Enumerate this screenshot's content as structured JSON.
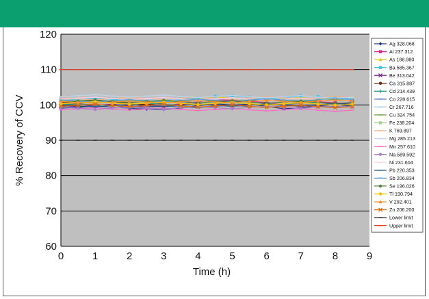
{
  "colors": {
    "header": "#0b9f70",
    "plot_background": "#bfbfbf",
    "gridline": "#000000"
  },
  "chart_data": {
    "type": "line",
    "xlabel": "Time (h)",
    "ylabel": "% Recovery of CCV",
    "xlim": [
      0,
      9
    ],
    "ylim": [
      60,
      120
    ],
    "x_ticks": [
      "0",
      "1",
      "2",
      "3",
      "4",
      "5",
      "6",
      "7",
      "8",
      "9"
    ],
    "y_ticks": [
      "60",
      "70",
      "80",
      "90",
      "100",
      "110",
      "120"
    ],
    "grid": "horizontal",
    "legend_position": "right",
    "x": [
      0,
      0.5,
      1,
      1.5,
      2,
      2.5,
      3,
      3.5,
      4,
      4.5,
      5,
      5.5,
      6,
      6.5,
      7,
      7.5,
      8,
      8.5
    ],
    "series": [
      {
        "name": "Ag 328.068",
        "color": "#1f3c88",
        "marker": "diamond",
        "values": [
          99.5,
          99.2,
          99.8,
          100.1,
          99.0,
          98.8,
          98.7,
          99.1,
          99.8,
          100.3,
          100.0,
          100.2,
          99.6,
          98.9,
          99.2,
          99.8,
          99.5,
          99.9
        ]
      },
      {
        "name": "Al 237.312",
        "color": "#e0218a",
        "marker": "square",
        "values": [
          100.2,
          100.4,
          100.9,
          101.2,
          100.6,
          100.0,
          99.8,
          100.3,
          100.9,
          101.5,
          101.3,
          101.0,
          100.7,
          100.2,
          100.5,
          100.9,
          100.6,
          100.4
        ]
      },
      {
        "name": "As 188.980",
        "color": "#e6c619",
        "marker": "triangle",
        "values": [
          101.1,
          100.8,
          101.4,
          101.0,
          100.3,
          100.7,
          101.2,
          101.6,
          101.9,
          102.3,
          101.8,
          101.5,
          101.2,
          101.7,
          102.1,
          101.6,
          101.9,
          102.2
        ]
      },
      {
        "name": "Ba 585.367",
        "color": "#3fc1e8",
        "marker": "square",
        "values": [
          101.8,
          101.5,
          101.9,
          101.6,
          101.2,
          101.0,
          101.3,
          101.7,
          102.0,
          102.4,
          102.6,
          102.2,
          101.9,
          102.1,
          102.5,
          102.3,
          102.0,
          101.7
        ]
      },
      {
        "name": "Be 313.042",
        "color": "#7b2c8f",
        "marker": "x",
        "values": [
          99.8,
          99.5,
          99.9,
          100.2,
          99.7,
          99.4,
          99.6,
          100.1,
          100.4,
          100.0,
          99.8,
          100.1,
          100.3,
          99.9,
          99.6,
          100.0,
          100.2,
          100.5
        ]
      },
      {
        "name": "Ca 315.887",
        "color": "#6b2d12",
        "marker": "circle",
        "values": [
          100.6,
          100.9,
          101.3,
          100.9,
          100.4,
          100.1,
          100.5,
          100.9,
          101.3,
          101.0,
          100.7,
          101.1,
          101.4,
          101.0,
          100.8,
          101.2,
          101.5,
          101.1
        ]
      },
      {
        "name": "Cd 214.439",
        "color": "#2a9d8f",
        "marker": "plus",
        "values": [
          100.1,
          100.3,
          100.0,
          99.8,
          100.2,
          100.5,
          100.2,
          99.9,
          100.1,
          100.4,
          100.6,
          100.3,
          100.0,
          100.2,
          100.5,
          100.7,
          100.4,
          100.1
        ]
      },
      {
        "name": "Co 228.615",
        "color": "#4472c4",
        "marker": "dash",
        "values": [
          99.0,
          99.4,
          99.7,
          99.3,
          99.1,
          99.5,
          99.8,
          99.4,
          99.2,
          99.6,
          99.9,
          99.5,
          99.3,
          99.7,
          100.0,
          99.6,
          99.4,
          99.8
        ]
      },
      {
        "name": "Cr 267.716",
        "color": "#9dc3e6",
        "marker": "dash",
        "values": [
          100.9,
          101.2,
          101.6,
          101.3,
          101.0,
          101.4,
          101.7,
          101.4,
          101.1,
          101.5,
          101.8,
          101.5,
          101.2,
          101.6,
          101.9,
          101.6,
          101.3,
          101.7
        ]
      },
      {
        "name": "Cu 324.754",
        "color": "#70ad47",
        "marker": "dash",
        "values": [
          101.3,
          101.0,
          100.7,
          101.1,
          101.4,
          101.1,
          100.8,
          101.2,
          101.5,
          101.2,
          100.9,
          101.3,
          101.6,
          101.3,
          101.0,
          101.4,
          101.7,
          101.4
        ]
      },
      {
        "name": "Fe 238.204",
        "color": "#a9d18e",
        "marker": "square",
        "values": [
          100.4,
          100.7,
          101.0,
          100.6,
          100.3,
          100.6,
          100.9,
          100.5,
          100.2,
          100.5,
          100.8,
          100.4,
          100.1,
          100.4,
          100.7,
          100.3,
          100.0,
          100.3
        ]
      },
      {
        "name": "K 769.897",
        "color": "#f4b183",
        "marker": "dash",
        "values": [
          102.0,
          101.7,
          101.4,
          101.8,
          102.1,
          101.8,
          101.5,
          101.9,
          102.2,
          101.9,
          101.6,
          102.0,
          102.3,
          102.0,
          101.7,
          102.1,
          102.4,
          102.1
        ]
      },
      {
        "name": "Mg 285.213",
        "color": "#bdd7ee",
        "marker": "dash",
        "values": [
          102.3,
          102.6,
          102.9,
          102.5,
          102.2,
          102.5,
          102.8,
          102.4,
          102.1,
          102.4,
          102.7,
          102.3,
          102.0,
          102.3,
          102.6,
          102.2,
          101.9,
          102.2
        ]
      },
      {
        "name": "Mn 257.610",
        "color": "#ff66c4",
        "marker": "dash",
        "values": [
          98.6,
          98.9,
          99.2,
          98.8,
          98.5,
          98.8,
          99.1,
          98.7,
          98.4,
          98.7,
          99.0,
          98.6,
          98.3,
          98.6,
          98.9,
          98.5,
          98.2,
          98.5
        ]
      },
      {
        "name": "Na 589.592",
        "color": "#b07cc6",
        "marker": "circle",
        "values": [
          99.3,
          99.0,
          98.7,
          99.1,
          99.4,
          99.1,
          98.8,
          99.2,
          99.5,
          99.2,
          98.9,
          99.3,
          99.6,
          99.3,
          99.0,
          99.4,
          99.7,
          99.4
        ]
      },
      {
        "name": "Ni 231.604",
        "color": "#ffd1e8",
        "marker": "dash",
        "values": [
          101.6,
          101.9,
          102.2,
          101.8,
          101.5,
          101.8,
          102.1,
          101.7,
          101.4,
          101.7,
          102.0,
          101.6,
          101.3,
          101.6,
          101.9,
          101.5,
          101.2,
          101.5
        ]
      },
      {
        "name": "Pb 220.353",
        "color": "#1f4e79",
        "marker": "dash",
        "values": [
          100.0,
          99.7,
          99.4,
          99.8,
          100.1,
          99.8,
          99.5,
          99.9,
          100.2,
          99.9,
          99.6,
          100.0,
          100.3,
          100.0,
          99.7,
          100.1,
          100.4,
          100.1
        ]
      },
      {
        "name": "Sb 206.834",
        "color": "#5b9bd5",
        "marker": "dash",
        "values": [
          101.4,
          101.1,
          100.8,
          101.2,
          101.5,
          101.2,
          100.9,
          101.3,
          101.6,
          101.3,
          101.0,
          101.4,
          101.7,
          101.4,
          101.1,
          101.5,
          101.8,
          101.5
        ]
      },
      {
        "name": "Se 196.026",
        "color": "#548235",
        "marker": "circle",
        "values": [
          100.8,
          101.1,
          101.4,
          101.0,
          100.7,
          101.0,
          101.3,
          100.9,
          100.6,
          100.9,
          101.2,
          100.8,
          100.5,
          100.8,
          101.1,
          100.7,
          100.4,
          100.7
        ]
      },
      {
        "name": "Tl 190.794",
        "color": "#ffc000",
        "marker": "circle",
        "values": [
          100.3,
          100.6,
          100.9,
          100.5,
          100.2,
          100.5,
          100.8,
          100.4,
          100.1,
          100.4,
          100.7,
          100.3,
          100.0,
          100.3,
          100.6,
          100.2,
          99.9,
          100.2
        ]
      },
      {
        "name": "V 292.401",
        "color": "#f28e2b",
        "marker": "triangle",
        "values": [
          101.0,
          100.7,
          100.4,
          100.8,
          101.1,
          100.8,
          100.5,
          100.9,
          101.2,
          100.9,
          100.6,
          101.0,
          101.3,
          101.0,
          100.7,
          101.1,
          101.4,
          101.1
        ]
      },
      {
        "name": "Zn 206.200",
        "color": "#e46c0a",
        "marker": "x",
        "values": [
          99.6,
          99.9,
          100.2,
          99.8,
          99.5,
          99.8,
          100.1,
          99.7,
          99.4,
          99.7,
          100.0,
          99.6,
          99.3,
          99.6,
          99.9,
          99.5,
          99.2,
          99.5
        ]
      },
      {
        "name": "Lower limit",
        "color": "#222222",
        "marker": "dash",
        "values": [
          90,
          90,
          90,
          90,
          90,
          90,
          90,
          90,
          90,
          90,
          90,
          90,
          90,
          90,
          90,
          90,
          90,
          90
        ]
      },
      {
        "name": "Upper limit",
        "color": "#e8432a",
        "marker": "dash",
        "values": [
          110,
          110,
          110,
          110,
          110,
          110,
          110,
          110,
          110,
          110,
          110,
          110,
          110,
          110,
          110,
          110,
          110,
          110
        ]
      }
    ]
  }
}
